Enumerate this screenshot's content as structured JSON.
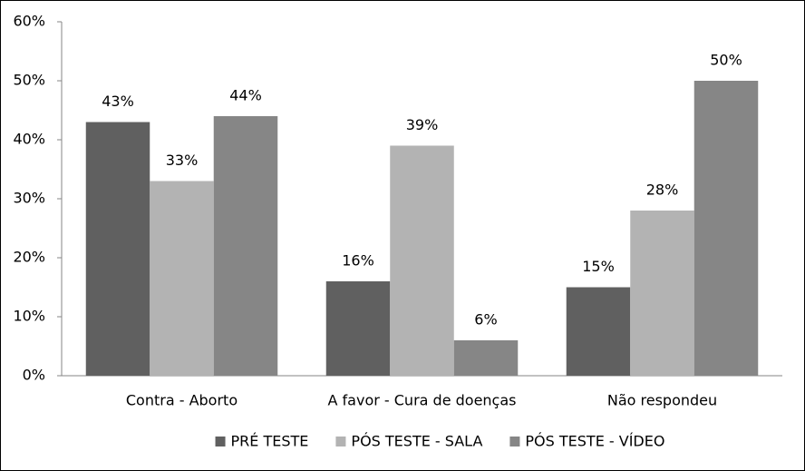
{
  "chart_data": {
    "type": "bar",
    "categories": [
      "Contra - Aborto",
      "A favor - Cura de doenças",
      "Não respondeu"
    ],
    "series": [
      {
        "name": "PRÉ TESTE",
        "color": "#606060",
        "values": [
          43,
          16,
          15
        ],
        "value_labels": [
          "43%",
          "16%",
          "15%"
        ]
      },
      {
        "name": "PÓS TESTE - SALA",
        "color": "#b3b3b3",
        "values": [
          33,
          39,
          28
        ],
        "value_labels": [
          "33%",
          "39%",
          "28%"
        ]
      },
      {
        "name": "PÓS TESTE - VÍDEO",
        "color": "#868686",
        "values": [
          44,
          6,
          50
        ],
        "value_labels": [
          "44%",
          "6%",
          "50%"
        ]
      }
    ],
    "ylim": [
      0,
      60
    ],
    "yticks": [
      {
        "value": 0,
        "label": "0%"
      },
      {
        "value": 10,
        "label": "10%"
      },
      {
        "value": 20,
        "label": "20%"
      },
      {
        "value": 30,
        "label": "30%"
      },
      {
        "value": 40,
        "label": "40%"
      },
      {
        "value": 50,
        "label": "50%"
      },
      {
        "value": 60,
        "label": "60%"
      }
    ],
    "legend": "bottom"
  }
}
